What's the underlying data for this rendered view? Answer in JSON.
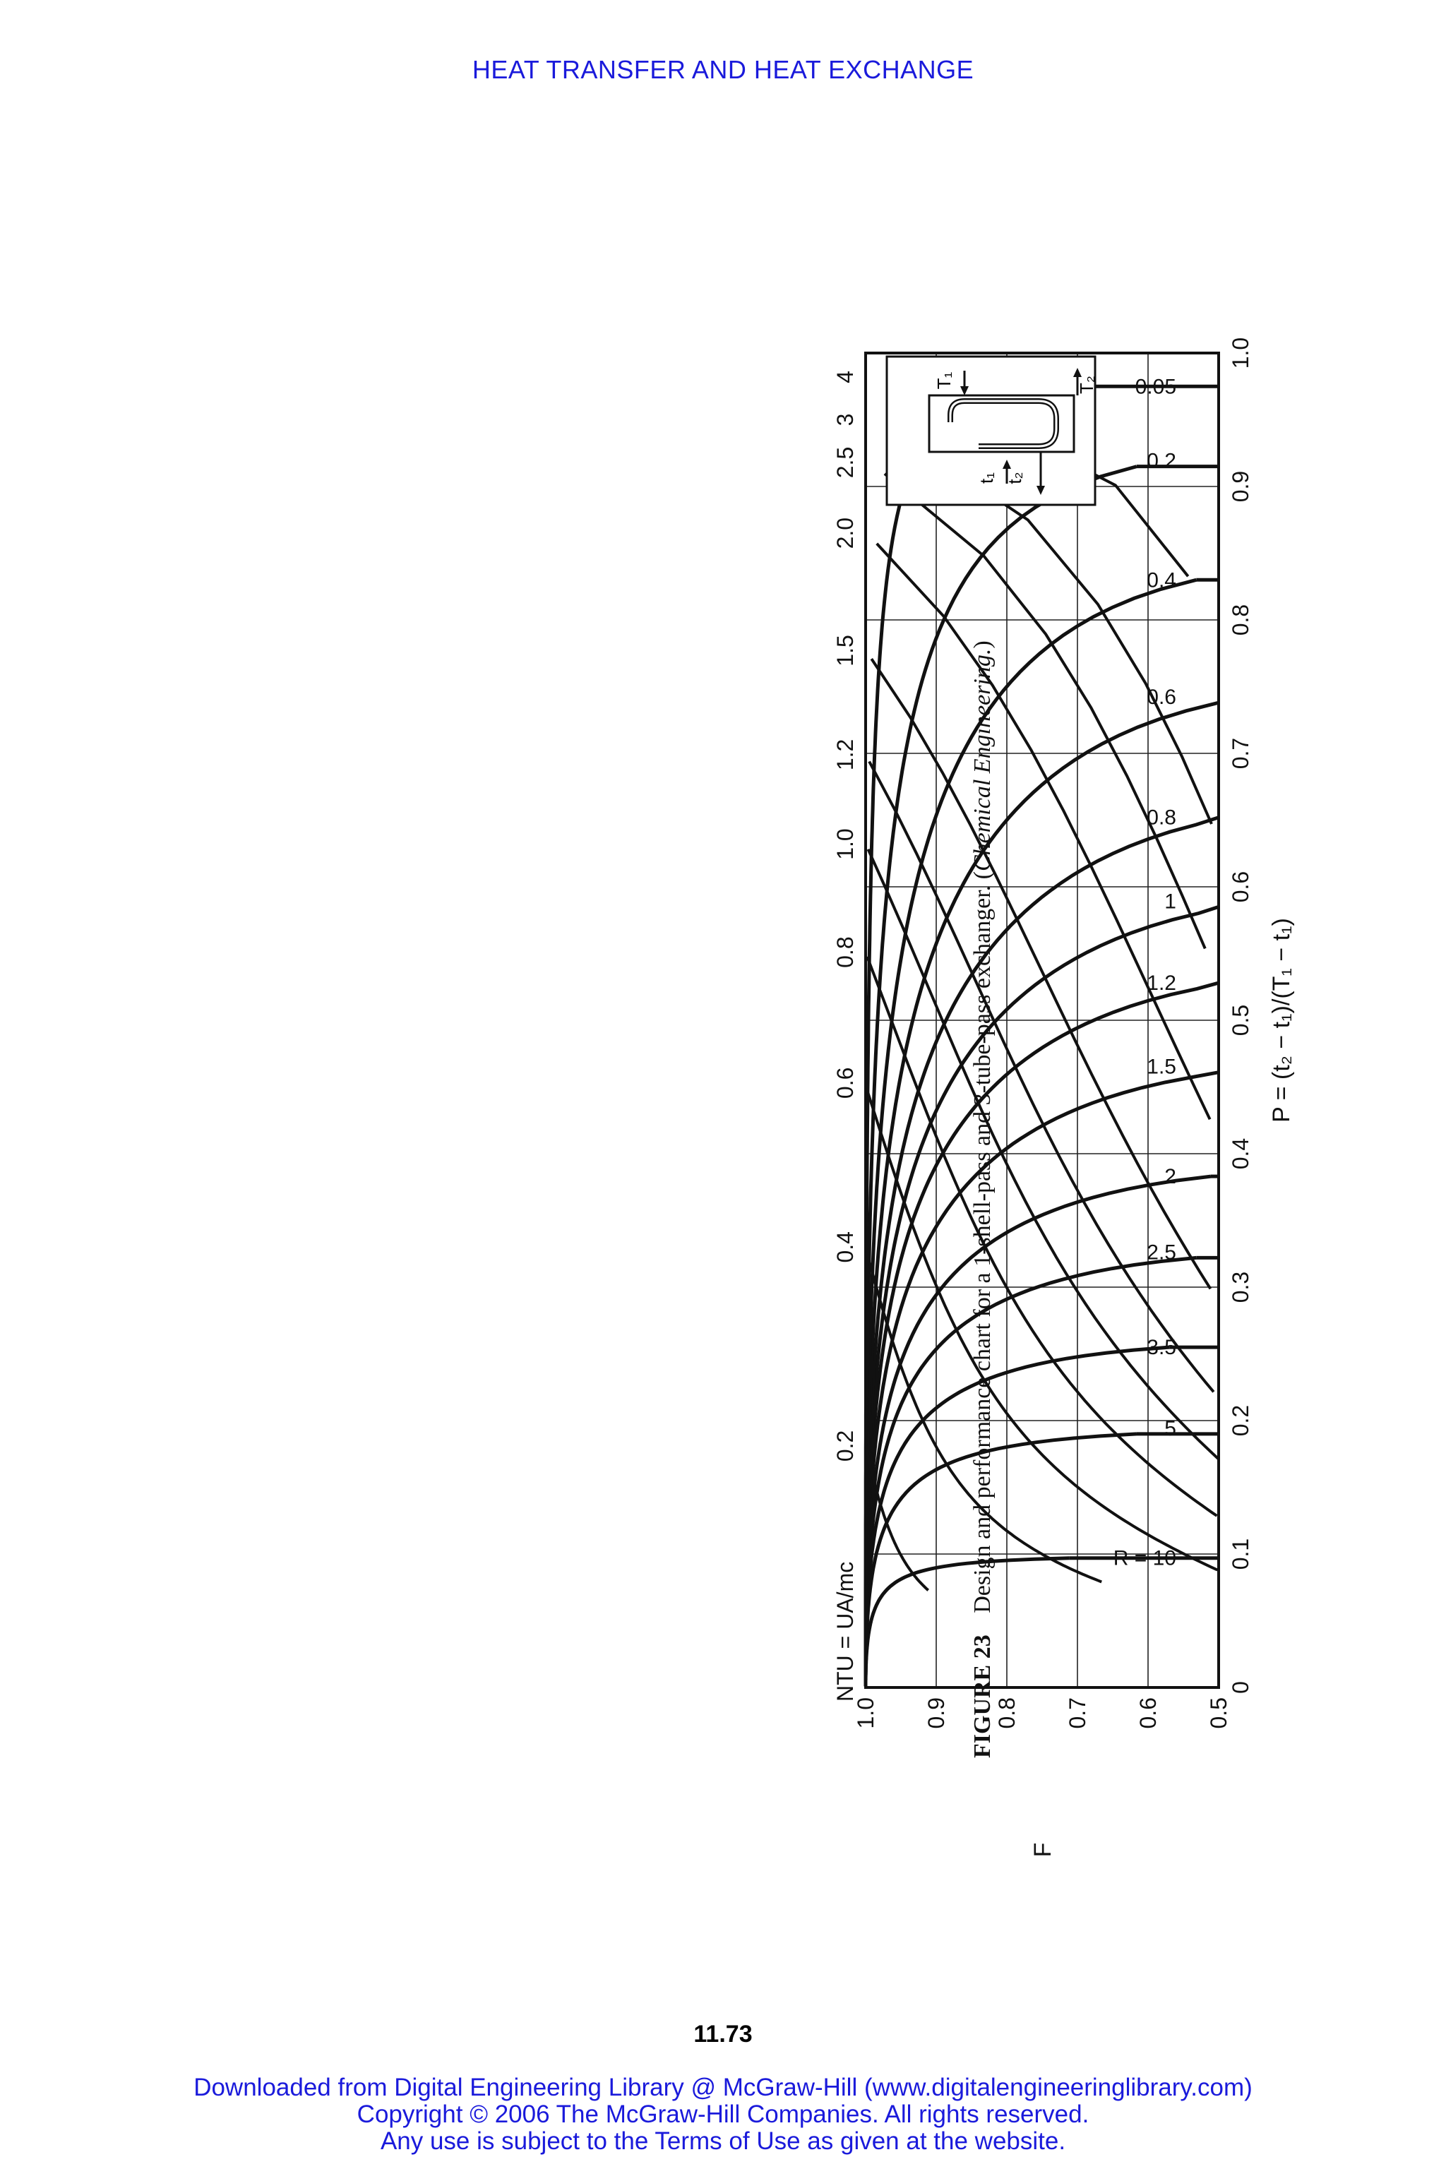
{
  "page": {
    "running_head": "HEAT TRANSFER AND HEAT EXCHANGE",
    "page_number": "11.73",
    "link_color": "#1a1adb",
    "ink_color": "#111111",
    "footer_lines": [
      "Downloaded from Digital Engineering Library @ McGraw-Hill (www.digitalengineeringlibrary.com)",
      "Copyright © 2006 The McGraw-Hill Companies. All rights reserved.",
      "Any use is subject to the Terms of Use as given at the website."
    ]
  },
  "caption": {
    "label": "FIGURE 23",
    "text": "Design and performance chart for a 1-shell-pass and 3-tube-pass exchanger. (",
    "source": "Chemical Engineering.",
    "close": ")"
  },
  "chart_data": {
    "type": "line",
    "orientation": "rotated 90 degrees counter-clockwise on the page",
    "xlabel": "P = (t₂ − t₁)/(T₁ − t₁)",
    "ylabel": "F",
    "top_axis_label": "NTU = UA/mc",
    "xlim": [
      0,
      1.0
    ],
    "ylim": [
      0.5,
      1.0
    ],
    "x_ticks": [
      "0",
      "0.1",
      "0.2",
      "0.3",
      "0.4",
      "0.5",
      "0.6",
      "0.7",
      "0.8",
      "0.9",
      "1.0"
    ],
    "y_ticks": [
      "0.5",
      "0.6",
      "0.7",
      "0.8",
      "0.9",
      "1.0"
    ],
    "ntu_ticks": [
      {
        "label": "0.2",
        "p": 0.181
      },
      {
        "label": "0.4",
        "p": 0.33
      },
      {
        "label": "0.6",
        "p": 0.453
      },
      {
        "label": "0.8",
        "p": 0.551
      },
      {
        "label": "1.0",
        "p": 0.632
      },
      {
        "label": "1.2",
        "p": 0.699
      },
      {
        "label": "1.5",
        "p": 0.777
      },
      {
        "label": "2.0",
        "p": 0.865
      },
      {
        "label": "2.5",
        "p": 0.918
      },
      {
        "label": "3",
        "p": 0.95
      },
      {
        "label": "4",
        "p": 0.982
      }
    ],
    "grid": true,
    "r_prefix": "R = ",
    "r_series": [
      {
        "name": "10",
        "pmax": 0.097
      },
      {
        "name": "5",
        "pmax": 0.19
      },
      {
        "name": "3.5",
        "pmax": 0.255
      },
      {
        "name": "2.5",
        "pmax": 0.322
      },
      {
        "name": "2",
        "pmax": 0.383
      },
      {
        "name": "1.5",
        "pmax": 0.461
      },
      {
        "name": "1.2",
        "pmax": 0.528
      },
      {
        "name": "1",
        "pmax": 0.585
      },
      {
        "name": "0.8",
        "pmax": 0.652
      },
      {
        "name": "0.6",
        "pmax": 0.738
      },
      {
        "name": "0.4",
        "pmax": 0.83
      },
      {
        "name": "0.2",
        "pmax": 0.915
      },
      {
        "name": "0.05",
        "pmax": 0.975
      }
    ]
  },
  "inset": {
    "labels": [
      "T₁",
      "t₂",
      "t₁",
      "T₂"
    ]
  }
}
